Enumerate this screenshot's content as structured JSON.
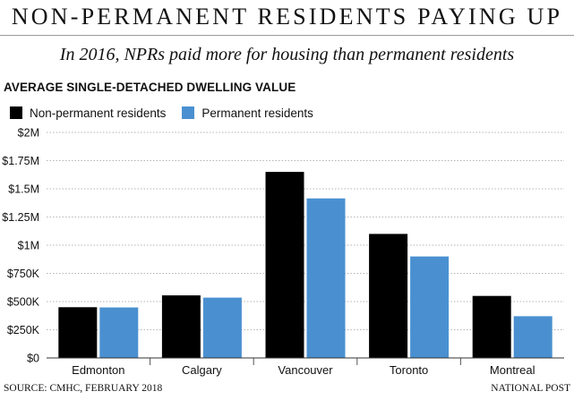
{
  "header": {
    "title": "NON-PERMANENT RESIDENTS PAYING UP",
    "subtitle": "In 2016, NPRs paid more for housing than permanent residents"
  },
  "chart_data": {
    "type": "bar",
    "title": "AVERAGE SINGLE-DETACHED DWELLING VALUE",
    "categories": [
      "Edmonton",
      "Calgary",
      "Vancouver",
      "Toronto",
      "Montreal"
    ],
    "series": [
      {
        "name": "Non-permanent residents",
        "color": "#000000",
        "values": [
          450000,
          555000,
          1650000,
          1100000,
          550000
        ]
      },
      {
        "name": "Permanent residents",
        "color": "#4a90d0",
        "values": [
          448000,
          535000,
          1415000,
          900000,
          370000
        ]
      }
    ],
    "ylim": [
      0,
      2000000
    ],
    "yticks": [
      {
        "value": 0,
        "label": "$0"
      },
      {
        "value": 250000,
        "label": "$250K"
      },
      {
        "value": 500000,
        "label": "$500K"
      },
      {
        "value": 750000,
        "label": "$750K"
      },
      {
        "value": 1000000,
        "label": "$1M"
      },
      {
        "value": 1250000,
        "label": "$1.25M"
      },
      {
        "value": 1500000,
        "label": "$1.5M"
      },
      {
        "value": 1750000,
        "label": "$1.75M"
      },
      {
        "value": 2000000,
        "label": "$2M"
      }
    ],
    "grid": true,
    "legend_position": "top-left"
  },
  "footer": {
    "source": "SOURCE: CMHC, FEBRUARY 2018",
    "credit": "NATIONAL POST"
  }
}
